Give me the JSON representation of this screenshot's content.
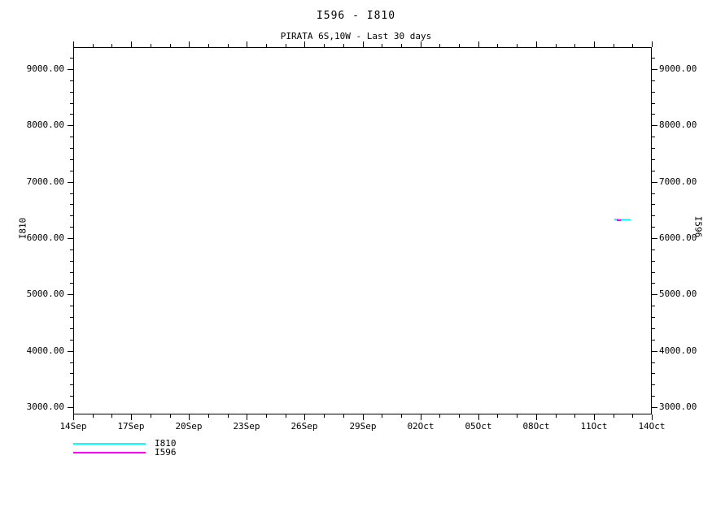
{
  "chart_data": {
    "type": "line",
    "title": "I596 - I810",
    "subtitle": "PIRATA 6S,10W - Last 30 days",
    "left_axis_label": "I810",
    "right_axis_label": "I596",
    "background_color": "#ffffff",
    "axis_color": "#000000",
    "grid": "off",
    "x_axis": {
      "range_days": [
        0,
        30
      ],
      "minor_step_days": 1,
      "major_ticks": [
        {
          "day": 0,
          "label": "14Sep"
        },
        {
          "day": 3,
          "label": "17Sep"
        },
        {
          "day": 6,
          "label": "20Sep"
        },
        {
          "day": 9,
          "label": "23Sep"
        },
        {
          "day": 12,
          "label": "26Sep"
        },
        {
          "day": 15,
          "label": "29Sep"
        },
        {
          "day": 18,
          "label": "02Oct"
        },
        {
          "day": 21,
          "label": "05Oct"
        },
        {
          "day": 24,
          "label": "08Oct"
        },
        {
          "day": 27,
          "label": "11Oct"
        },
        {
          "day": 30,
          "label": "14Oct"
        }
      ]
    },
    "y_axis": {
      "range": [
        2870,
        9390
      ],
      "minor_step": 200,
      "mirrored_right": true,
      "major_ticks": [
        {
          "value": 3000,
          "label": "3000.00"
        },
        {
          "value": 4000,
          "label": "4000.00"
        },
        {
          "value": 5000,
          "label": "5000.00"
        },
        {
          "value": 6000,
          "label": "6000.00"
        },
        {
          "value": 7000,
          "label": "7000.00"
        },
        {
          "value": 8000,
          "label": "8000.00"
        },
        {
          "value": 9000,
          "label": "9000.00"
        }
      ]
    },
    "series": [
      {
        "name": "I810",
        "color": "#00ffff",
        "points": [
          [
            28.05,
            6332
          ],
          [
            28.45,
            6328
          ],
          [
            28.9,
            6326
          ]
        ]
      },
      {
        "name": "I596",
        "color": "#ff00ff",
        "points": [
          [
            28.18,
            6318
          ],
          [
            28.42,
            6314
          ]
        ]
      }
    ],
    "legend": {
      "position": "bottom-left",
      "entries": [
        {
          "label": "I810",
          "color": "#00ffff"
        },
        {
          "label": "I596",
          "color": "#ff00ff"
        }
      ]
    }
  }
}
